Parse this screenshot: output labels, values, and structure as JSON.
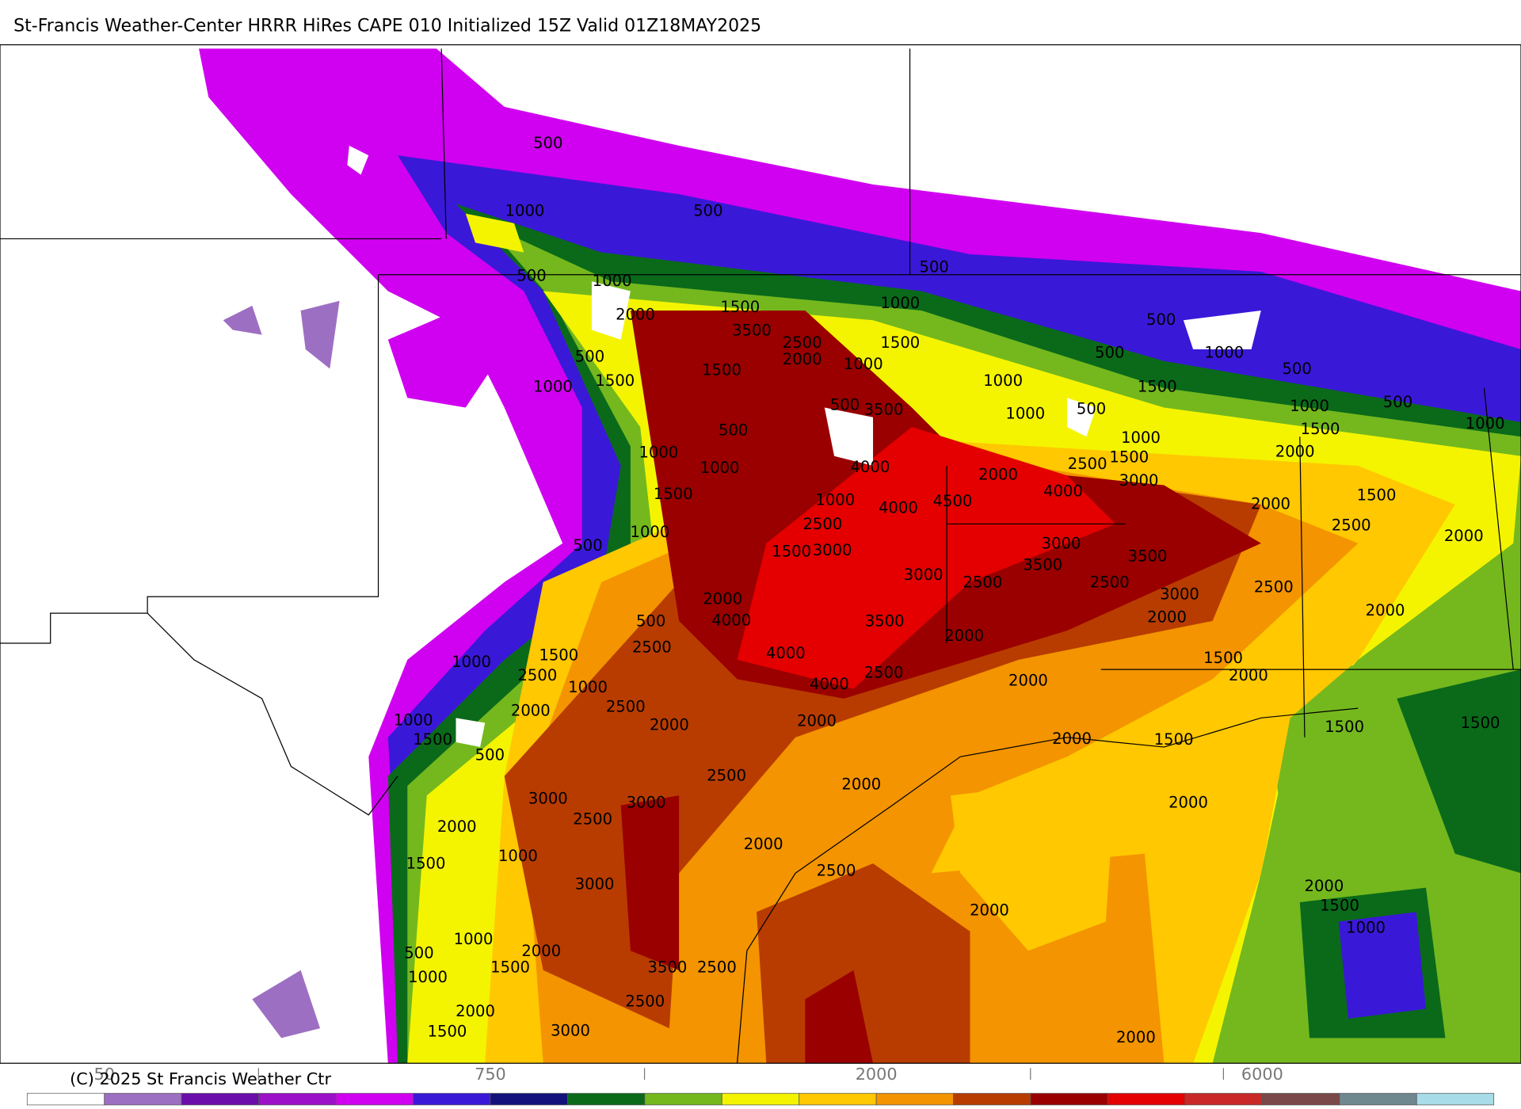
{
  "header": {
    "title": "St-Francis Weather-Center HRRR HiRes CAPE  010 Initialized  15Z Valid 01Z18MAY2025"
  },
  "map": {
    "contour_labels": [
      500,
      1000,
      500,
      500,
      1000,
      2000,
      1500,
      3500,
      2500,
      2000,
      1000,
      1500,
      500,
      1000,
      500,
      1500,
      1000,
      1500,
      500,
      3500,
      500,
      1000,
      1000,
      4000,
      1500,
      1000,
      4000,
      4500,
      2500,
      1000,
      3000,
      1500,
      500,
      2000,
      4000,
      2500,
      1500,
      3000,
      1000,
      3000,
      3500,
      3500,
      2500,
      3000,
      2000,
      2500,
      3000,
      2500,
      2000,
      4000,
      3500,
      500,
      2500,
      4000,
      2000,
      1500,
      1000,
      2500,
      1000,
      4000,
      2500,
      2000,
      2500,
      2000,
      1000,
      2000,
      2000,
      1500,
      500,
      2000,
      1500,
      1500,
      2000,
      2500,
      2000,
      3000,
      3000,
      2500,
      2000,
      2000,
      2000,
      1000,
      1500,
      3000,
      2500,
      2000,
      2000,
      1500,
      1000,
      500,
      1000,
      2000,
      1500,
      3500,
      2500,
      1000,
      2500,
      2000,
      3000,
      1500,
      2000,
      500,
      500,
      1000,
      500,
      1500,
      1000,
      1000,
      500,
      1000,
      500,
      1000,
      1500,
      2000,
      2000,
      1500,
      2500,
      2000,
      2000,
      1500,
      1500
    ]
  },
  "colorbar": {
    "colors": [
      "#ffffff",
      "#9d6fc3",
      "#6a0dab",
      "#9b10c8",
      "#d000f0",
      "#3a18d8",
      "#12127a",
      "#0a6a1a",
      "#74b81e",
      "#f4f400",
      "#ffc800",
      "#f39400",
      "#b83c00",
      "#9a0000",
      "#e40000",
      "#c82828",
      "#7a4848",
      "#6f8890",
      "#a8dce8"
    ],
    "tick_labels": [
      "50",
      "750",
      "2000",
      "6000"
    ]
  },
  "footer": {
    "copyright": "(C) 2025 St Francis Weather Ctr"
  }
}
